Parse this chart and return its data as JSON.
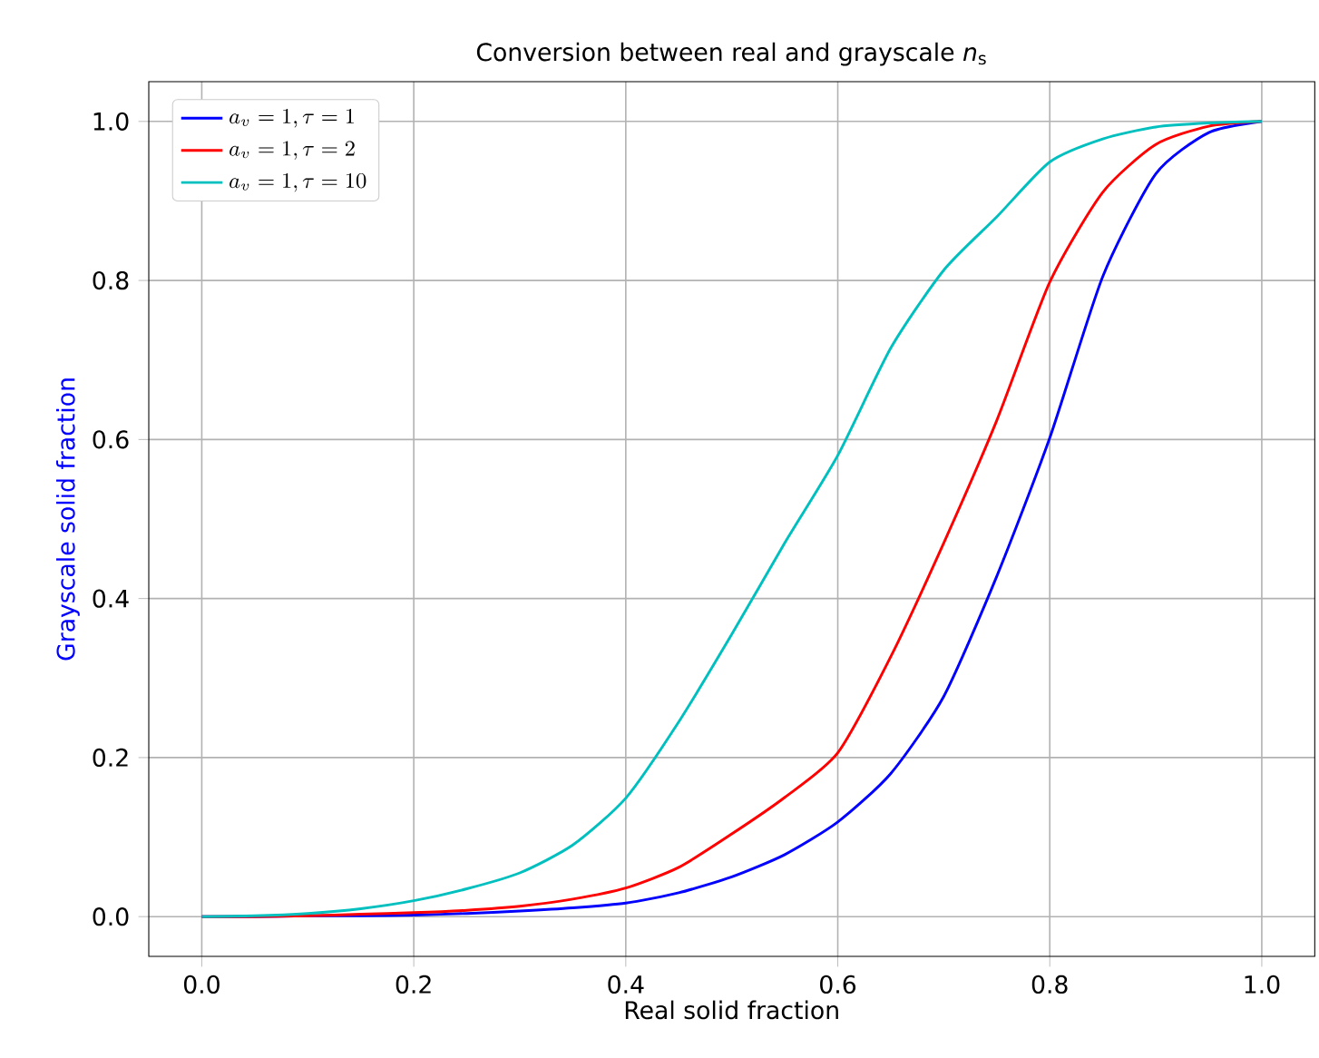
{
  "chart_data": {
    "type": "line",
    "title": "Conversion between real and grayscale *n*$_{s}$",
    "xlabel": "Real solid fraction",
    "ylabel": "Grayscale solid fraction",
    "x": [
      0,
      0.05,
      0.1,
      0.15,
      0.2,
      0.25,
      0.3,
      0.35,
      0.4,
      0.45,
      0.5,
      0.55,
      0.6,
      0.65,
      0.7,
      0.75,
      0.8,
      0.85,
      0.9,
      0.95,
      1.0
    ],
    "series": [
      {
        "name": "a_v = 1, \\tau = 1",
        "color": "#0000ff",
        "values": [
          0,
          0,
          0.001,
          0.001,
          0.002,
          0.004,
          0.007,
          0.011,
          0.017,
          0.03,
          0.05,
          0.078,
          0.119,
          0.18,
          0.277,
          0.428,
          0.602,
          0.805,
          0.934,
          0.986,
          1
        ]
      },
      {
        "name": "a_v = 1, \\tau = 2",
        "color": "#ff0000",
        "values": [
          0,
          0,
          0.001,
          0.003,
          0.005,
          0.008,
          0.013,
          0.022,
          0.036,
          0.062,
          0.104,
          0.15,
          0.206,
          0.327,
          0.47,
          0.624,
          0.798,
          0.911,
          0.971,
          0.994,
          1
        ]
      },
      {
        "name": "a_v = 1, \\tau = 10",
        "color": "#00bfbf",
        "values": [
          0,
          0.001,
          0.004,
          0.01,
          0.02,
          0.035,
          0.055,
          0.09,
          0.149,
          0.245,
          0.355,
          0.47,
          0.58,
          0.715,
          0.813,
          0.88,
          0.949,
          0.978,
          0.993,
          0.998,
          1
        ]
      }
    ],
    "xlim": [
      -0.05,
      1.05
    ],
    "ylim": [
      -0.05,
      1.05
    ],
    "xticks": [
      {
        "value": 0,
        "label": "0.0"
      },
      0.2,
      0.4,
      0.6,
      0.8,
      {
        "value": 1,
        "label": "1.0"
      }
    ],
    "yticks": [
      {
        "value": 0,
        "label": "0.0"
      },
      0.2,
      0.4,
      0.6,
      0.8,
      {
        "value": 1,
        "label": "1.0"
      }
    ],
    "grid": true,
    "legend": "top left",
    "line_style": "solid"
  }
}
